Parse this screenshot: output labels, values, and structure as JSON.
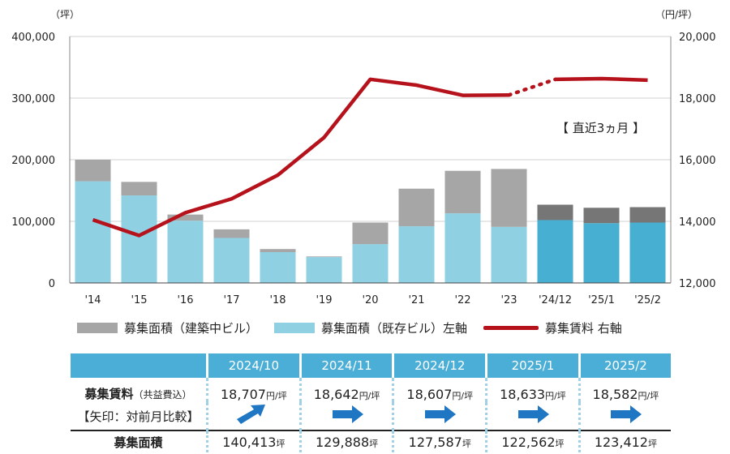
{
  "chart_data": {
    "type": "bar",
    "categories": [
      "'14",
      "'15",
      "'16",
      "'17",
      "'18",
      "'19",
      "'20",
      "'21",
      "'22",
      "'23",
      "'24/12",
      "'25/1",
      "'25/2"
    ],
    "series": [
      {
        "name": "募集面積（既存ビル）左軸",
        "values": [
          165000,
          142000,
          101000,
          73000,
          50000,
          42000,
          63000,
          92000,
          113000,
          91000,
          102000,
          97000,
          98000
        ]
      },
      {
        "name": "募集面積（建築中ビル）",
        "values": [
          35000,
          22000,
          10000,
          14000,
          5000,
          1000,
          35000,
          61000,
          69000,
          94000,
          25000,
          25000,
          25000
        ]
      },
      {
        "name": "募集賃料 右軸",
        "values": [
          14050,
          13540,
          14280,
          14730,
          15500,
          16720,
          18610,
          18420,
          18090,
          18100,
          18607,
          18633,
          18582
        ]
      }
    ],
    "y_left_label": "（坪）",
    "y_right_label": "（円/坪）",
    "ylim_left": [
      0,
      400000
    ],
    "ylim_right": [
      12000,
      20000
    ],
    "y_left_ticks": [
      "0",
      "100,000",
      "200,000",
      "300,000",
      "400,000"
    ],
    "y_right_ticks": [
      "12,000",
      "14,000",
      "16,000",
      "18,000",
      "20,000"
    ],
    "annotation": "【 直近3ヵ月 】",
    "colors": {
      "existing": "#8fd0e3",
      "existing_recent": "#47afd1",
      "construction": "#a6a6a6",
      "construction_recent": "#767676",
      "rent": "#b5121b"
    },
    "legend_position": "bottom"
  },
  "legend": {
    "construction": "募集面積（建築中ビル）",
    "existing": "募集面積（既存ビル）左軸",
    "rent": "募集賃料 右軸"
  },
  "table": {
    "months": [
      "2024/10",
      "2024/11",
      "2024/12",
      "2025/1",
      "2025/2"
    ],
    "rent_label": "募集賃料",
    "rent_label_sub": "（共益費込）",
    "arrow_note": "【矢印：対前月比較】",
    "area_label": "募集面積",
    "rent_values": [
      "18,707",
      "18,642",
      "18,607",
      "18,633",
      "18,582"
    ],
    "rent_unit": "円/坪",
    "area_values": [
      "140,413",
      "129,888",
      "127,587",
      "122,562",
      "123,412"
    ],
    "area_unit": "坪",
    "arrows": [
      "up",
      "flat",
      "flat",
      "flat",
      "flat"
    ]
  }
}
